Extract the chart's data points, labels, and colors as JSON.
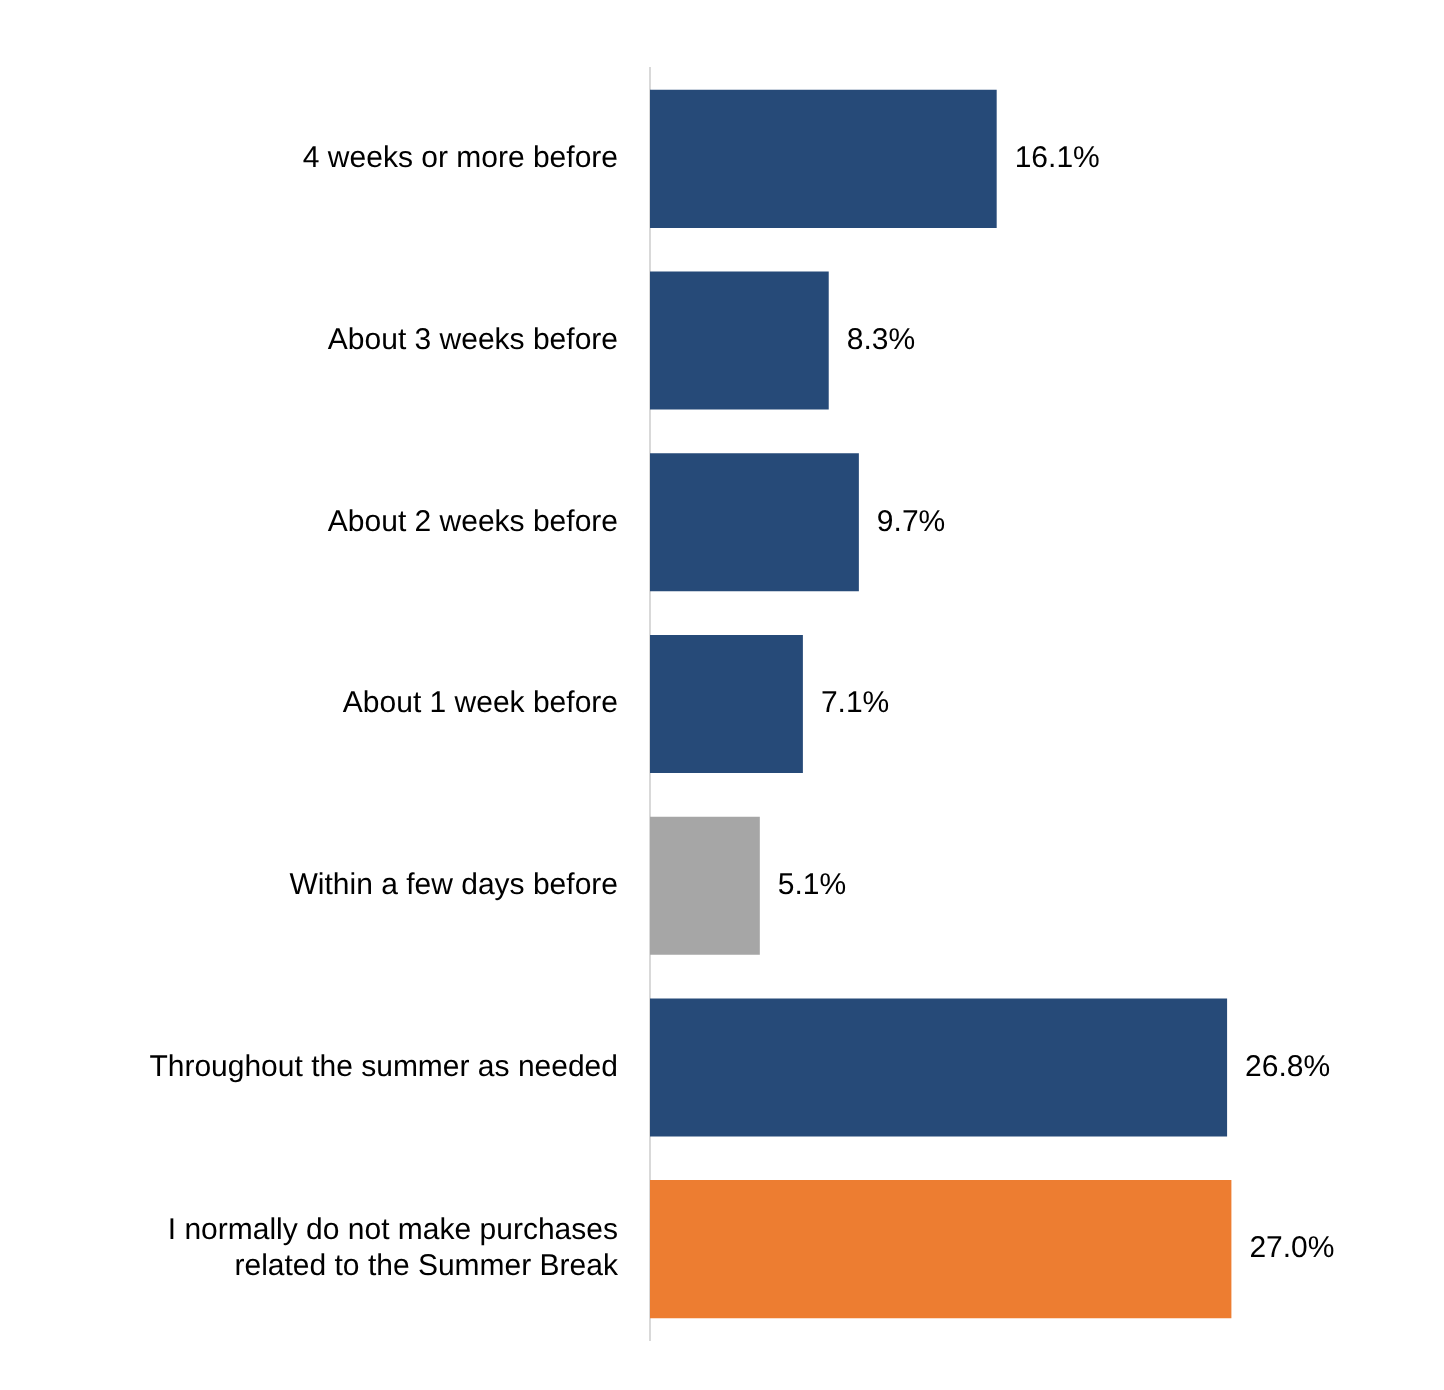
{
  "chart_data": {
    "type": "bar",
    "orientation": "horizontal",
    "categories": [
      "4 weeks or more before",
      "About 3 weeks before",
      "About 2 weeks before",
      "About 1 week before",
      "Within a few days before",
      "Throughout the summer as needed",
      "I normally do not make purchases related to the Summer Break"
    ],
    "values": [
      16.1,
      8.3,
      9.7,
      7.1,
      5.1,
      26.8,
      27.0
    ],
    "colors": [
      "#264a78",
      "#264a78",
      "#264a78",
      "#264a78",
      "#a6a6a6",
      "#264a78",
      "#ed7d31"
    ],
    "value_labels": [
      "16.1%",
      "8.3%",
      "9.7%",
      "7.1%",
      "5.1%",
      "26.8%",
      "27.0%"
    ],
    "legend": false
  }
}
